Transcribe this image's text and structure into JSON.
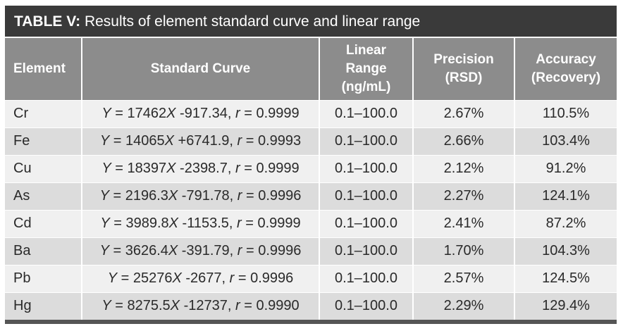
{
  "caption": {
    "label": "TABLE V:",
    "text": " Results of element standard curve and linear range"
  },
  "headers": {
    "element": "Element",
    "standard_curve": "Standard Curve",
    "linear_range": [
      "Linear",
      "Range",
      "(ng/mL)"
    ],
    "precision": [
      "Precision",
      "(RSD)"
    ],
    "accuracy": [
      "Accuracy",
      "(Recovery)"
    ]
  },
  "rows": [
    {
      "element": "Cr",
      "slope": "17462",
      "intercept": "-917.34",
      "r": "0.9999",
      "range": "0.1–100.0",
      "precision": "2.67%",
      "accuracy": "110.5%"
    },
    {
      "element": "Fe",
      "slope": "14065",
      "intercept": "+6741.9",
      "r": "0.9993",
      "range": "0.1–100.0",
      "precision": "2.66%",
      "accuracy": "103.4%"
    },
    {
      "element": "Cu",
      "slope": "18397",
      "intercept": "-2398.7",
      "r": "0.9999",
      "range": "0.1–100.0",
      "precision": "2.12%",
      "accuracy": "91.2%"
    },
    {
      "element": "As",
      "slope": "2196.3",
      "intercept": "-791.78",
      "r": "0.9996",
      "range": "0.1–100.0",
      "precision": "2.27%",
      "accuracy": "124.1%"
    },
    {
      "element": "Cd",
      "slope": "3989.8",
      "intercept": "-1153.5",
      "r": "0.9999",
      "range": "0.1–100.0",
      "precision": "2.41%",
      "accuracy": "87.2%"
    },
    {
      "element": "Ba",
      "slope": "3626.4",
      "intercept": "-391.79",
      "r": "0.9996",
      "range": "0.1–100.0",
      "precision": "1.70%",
      "accuracy": "104.3%"
    },
    {
      "element": "Pb",
      "slope": "25276",
      "intercept": "-2677",
      "r": "0.9996",
      "range": "0.1–100.0",
      "precision": "2.57%",
      "accuracy": "124.5%"
    },
    {
      "element": "Hg",
      "slope": "8275.5",
      "intercept": "-12737",
      "r": "0.9990",
      "range": "0.1–100.0",
      "precision": "2.29%",
      "accuracy": "129.4%"
    }
  ]
}
